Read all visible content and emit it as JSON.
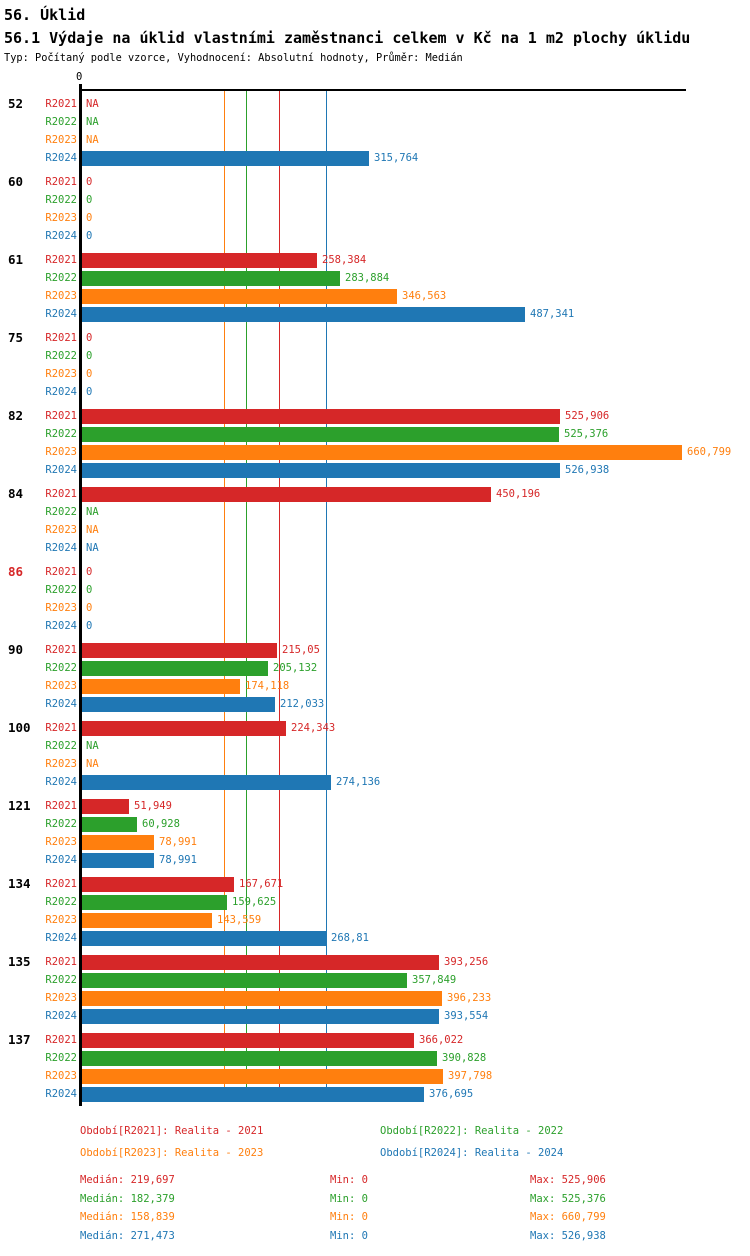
{
  "header": {
    "title": "56. Úklid",
    "subtitle": "56.1 Výdaje na úklid vlastními zaměstnanci celkem v Kč na 1 m2 plochy úklidu",
    "meta": "Typ: Počítaný podle vzorce, Vyhodnocení: Absolutní hodnoty, Průměr: Medián"
  },
  "chart_data": {
    "type": "bar",
    "orientation": "horizontal",
    "value_unit": "Kč na 1 m2 plochy úklidu",
    "axis": {
      "origin_label": "0",
      "x_min": 0,
      "x_max_approx": 668,
      "gridlines": "vertical median line per series"
    },
    "stats_labels": {
      "median": "Medián",
      "min": "Min",
      "max": "Max"
    },
    "series": [
      {
        "id": "R2021",
        "label": "R2021",
        "color": "#d62728",
        "legend": "Období[R2021]: Realita - 2021",
        "median": 219.697,
        "median_display": "219,697",
        "min_display": "0",
        "max_display": "525,906"
      },
      {
        "id": "R2022",
        "label": "R2022",
        "color": "#2ca02c",
        "legend": "Období[R2022]: Realita - 2022",
        "median": 182.379,
        "median_display": "182,379",
        "min_display": "0",
        "max_display": "525,376"
      },
      {
        "id": "R2023",
        "label": "R2023",
        "color": "#ff7f0e",
        "legend": "Období[R2023]: Realita - 2023",
        "median": 158.839,
        "median_display": "158,839",
        "min_display": "0",
        "max_display": "660,799"
      },
      {
        "id": "R2024",
        "label": "R2024",
        "color": "#1f77b4",
        "legend": "Období[R2024]: Realita - 2024",
        "median": 271.473,
        "median_display": "271,473",
        "min_display": "0",
        "max_display": "526,938"
      }
    ],
    "groups": [
      {
        "label": "52",
        "label_color": "#000000",
        "values": [
          null,
          null,
          null,
          315.764
        ],
        "display": [
          "NA",
          "NA",
          "NA",
          "315,764"
        ]
      },
      {
        "label": "60",
        "label_color": "#000000",
        "values": [
          0,
          0,
          0,
          0
        ],
        "display": [
          "0",
          "0",
          "0",
          "0"
        ]
      },
      {
        "label": "61",
        "label_color": "#000000",
        "values": [
          258.384,
          283.884,
          346.563,
          487.341
        ],
        "display": [
          "258,384",
          "283,884",
          "346,563",
          "487,341"
        ]
      },
      {
        "label": "75",
        "label_color": "#000000",
        "values": [
          0,
          0,
          0,
          0
        ],
        "display": [
          "0",
          "0",
          "0",
          "0"
        ]
      },
      {
        "label": "82",
        "label_color": "#000000",
        "values": [
          525.906,
          525.376,
          660.799,
          526.938
        ],
        "display": [
          "525,906",
          "525,376",
          "660,799",
          "526,938"
        ]
      },
      {
        "label": "84",
        "label_color": "#000000",
        "values": [
          450.196,
          null,
          null,
          null
        ],
        "display": [
          "450,196",
          "NA",
          "NA",
          "NA"
        ]
      },
      {
        "label": "86",
        "label_color": "#d62728",
        "values": [
          0,
          0,
          0,
          0
        ],
        "display": [
          "0",
          "0",
          "0",
          "0"
        ]
      },
      {
        "label": "90",
        "label_color": "#000000",
        "values": [
          215.05,
          205.132,
          174.118,
          212.033
        ],
        "display": [
          "215,05",
          "205,132",
          "174,118",
          "212,033"
        ]
      },
      {
        "label": "100",
        "label_color": "#000000",
        "values": [
          224.343,
          null,
          null,
          274.136
        ],
        "display": [
          "224,343",
          "NA",
          "NA",
          "274,136"
        ]
      },
      {
        "label": "121",
        "label_color": "#000000",
        "values": [
          51.949,
          60.928,
          78.991,
          78.991
        ],
        "display": [
          "51,949",
          "60,928",
          "78,991",
          "78,991"
        ]
      },
      {
        "label": "134",
        "label_color": "#000000",
        "values": [
          167.671,
          159.625,
          143.559,
          268.81
        ],
        "display": [
          "167,671",
          "159,625",
          "143,559",
          "268,81"
        ]
      },
      {
        "label": "135",
        "label_color": "#000000",
        "values": [
          393.256,
          357.849,
          396.233,
          393.554
        ],
        "display": [
          "393,256",
          "357,849",
          "396,233",
          "393,554"
        ]
      },
      {
        "label": "137",
        "label_color": "#000000",
        "values": [
          366.022,
          390.828,
          397.798,
          376.695
        ],
        "display": [
          "366,022",
          "390,828",
          "397,798",
          "376,695"
        ]
      }
    ]
  }
}
